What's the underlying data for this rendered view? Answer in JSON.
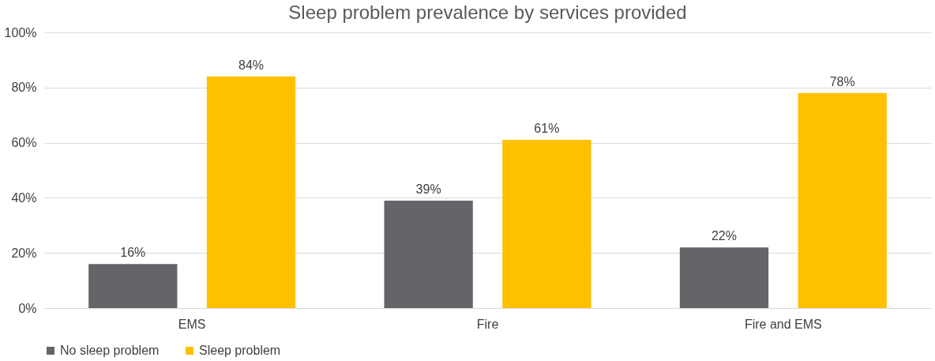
{
  "chart_data": {
    "type": "bar",
    "title": "Sleep problem prevalence by services provided",
    "categories": [
      "EMS",
      "Fire",
      "Fire and EMS"
    ],
    "series": [
      {
        "name": "No sleep problem",
        "color": "#636569",
        "values": [
          16,
          39,
          22
        ],
        "value_labels": [
          "16%",
          "39%",
          "22%"
        ]
      },
      {
        "name": "Sleep problem",
        "color": "#ffc000",
        "values": [
          84,
          61,
          78
        ],
        "value_labels": [
          "84%",
          "61%",
          "78%"
        ]
      }
    ],
    "ylim": [
      0,
      100
    ],
    "yticks": [
      {
        "value": 0,
        "label": "0%"
      },
      {
        "value": 20,
        "label": "20%"
      },
      {
        "value": 40,
        "label": "40%"
      },
      {
        "value": 60,
        "label": "60%"
      },
      {
        "value": 80,
        "label": "80%"
      },
      {
        "value": 100,
        "label": "100%"
      }
    ],
    "grid": "y",
    "legend": "bottom"
  }
}
